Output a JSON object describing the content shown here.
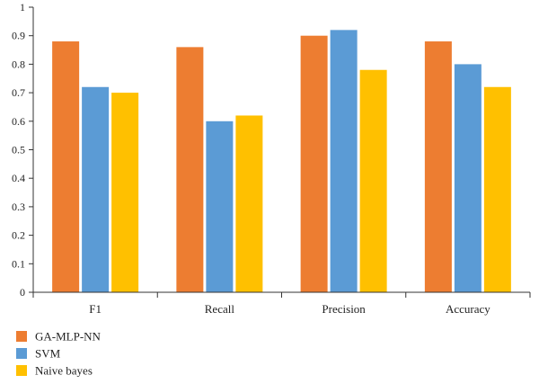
{
  "colors": {
    "ga_mlp_nn": "#ED7D31",
    "svm": "#5B9BD5",
    "naive_bayes": "#FFC000",
    "axis": "#333333",
    "text": "#222222"
  },
  "chart_data": {
    "type": "bar",
    "title": "",
    "xlabel": "",
    "ylabel": "",
    "categories": [
      "F1",
      "Recall",
      "Precision",
      "Accuracy"
    ],
    "series": [
      {
        "name": "GA-MLP-NN",
        "color": "#ED7D31",
        "values": [
          0.88,
          0.86,
          0.9,
          0.88
        ]
      },
      {
        "name": "SVM",
        "color": "#5B9BD5",
        "values": [
          0.72,
          0.6,
          0.92,
          0.8
        ]
      },
      {
        "name": "Naive bayes",
        "color": "#FFC000",
        "values": [
          0.7,
          0.62,
          0.78,
          0.72
        ]
      }
    ],
    "ylim": [
      0,
      1
    ],
    "yticks": [
      "0",
      "0.1",
      "0.2",
      "0.3",
      "0.4",
      "0.5",
      "0.6",
      "0.7",
      "0.8",
      "0.9",
      "1"
    ],
    "grid": false,
    "legend": {
      "placement": "bottom-left",
      "orientation": "vertical"
    }
  }
}
